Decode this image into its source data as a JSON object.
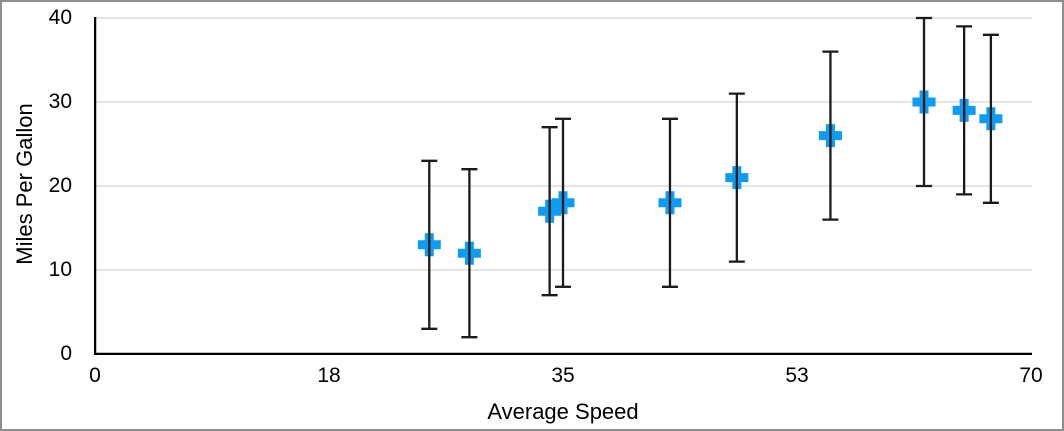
{
  "chart_data": {
    "type": "scatter",
    "title": "",
    "xlabel": "Average Speed",
    "ylabel": "Miles Per Gallon",
    "xlim": [
      0,
      70
    ],
    "ylim": [
      0,
      40
    ],
    "grid": "horizontal",
    "legend": "none",
    "x_ticks": [
      {
        "pos": 0,
        "label": "0"
      },
      {
        "pos": 17.5,
        "label": "18"
      },
      {
        "pos": 35,
        "label": "35"
      },
      {
        "pos": 52.5,
        "label": "53"
      },
      {
        "pos": 70,
        "label": "70"
      }
    ],
    "y_ticks": [
      0,
      10,
      20,
      30,
      40
    ],
    "marker": "plus",
    "error_bars": "y, symmetric, fixed value 10",
    "series": [
      {
        "name": "Miles Per Gallon",
        "points": [
          {
            "x": 25,
            "y": 13,
            "err": 10
          },
          {
            "x": 28,
            "y": 12,
            "err": 10
          },
          {
            "x": 34,
            "y": 17,
            "err": 10
          },
          {
            "x": 35,
            "y": 18,
            "err": 10
          },
          {
            "x": 43,
            "y": 18,
            "err": 10
          },
          {
            "x": 48,
            "y": 21,
            "err": 10
          },
          {
            "x": 55,
            "y": 26,
            "err": 10
          },
          {
            "x": 62,
            "y": 30,
            "err": 10
          },
          {
            "x": 65,
            "y": 29,
            "err": 10
          },
          {
            "x": 67,
            "y": 28,
            "err": 10
          }
        ]
      }
    ],
    "colors": {
      "marker": "#0f9bf2",
      "error_bar": "#1a1a1a",
      "gridline": "#dcdcdc",
      "axis": "#000000",
      "frame_border": "#8e8e8e",
      "background": "#ffffff"
    }
  }
}
